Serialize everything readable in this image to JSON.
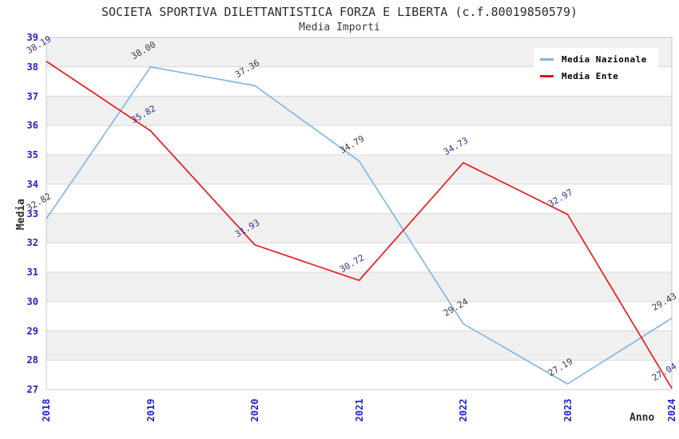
{
  "header": {
    "title": "SOCIETA SPORTIVA DILETTANTISTICA FORZA E LIBERTA (c.f.80019850579)",
    "subtitle": "Media Importi"
  },
  "chart_data": {
    "type": "line",
    "x": [
      "2018",
      "2019",
      "2020",
      "2021",
      "2022",
      "2023",
      "2024"
    ],
    "series": [
      {
        "name": "Media Nazionale",
        "color": "#7db4e8",
        "label_color": "#3c3c3c",
        "values": [
          32.82,
          38.0,
          37.36,
          34.79,
          29.24,
          27.19,
          29.43
        ]
      },
      {
        "name": "Media Ente",
        "color": "#ee0f0f",
        "label_color": "#333399",
        "values": [
          38.19,
          35.82,
          31.93,
          30.72,
          34.73,
          32.97,
          27.04
        ]
      }
    ],
    "xlabel": "Anno",
    "ylabel": "Media",
    "ylim": [
      27,
      39
    ],
    "yticks": [
      27,
      28,
      29,
      30,
      31,
      32,
      33,
      34,
      35,
      36,
      37,
      38,
      39
    ],
    "legend_position": "top-right",
    "grid": "horizontal-bands",
    "band_colors": [
      "#f0f0f0",
      "#ffffff"
    ],
    "gridline_color": "#d9d9d9",
    "plot_border_color": "#c8c8c8",
    "axis_tick_color": "#2323cd"
  }
}
